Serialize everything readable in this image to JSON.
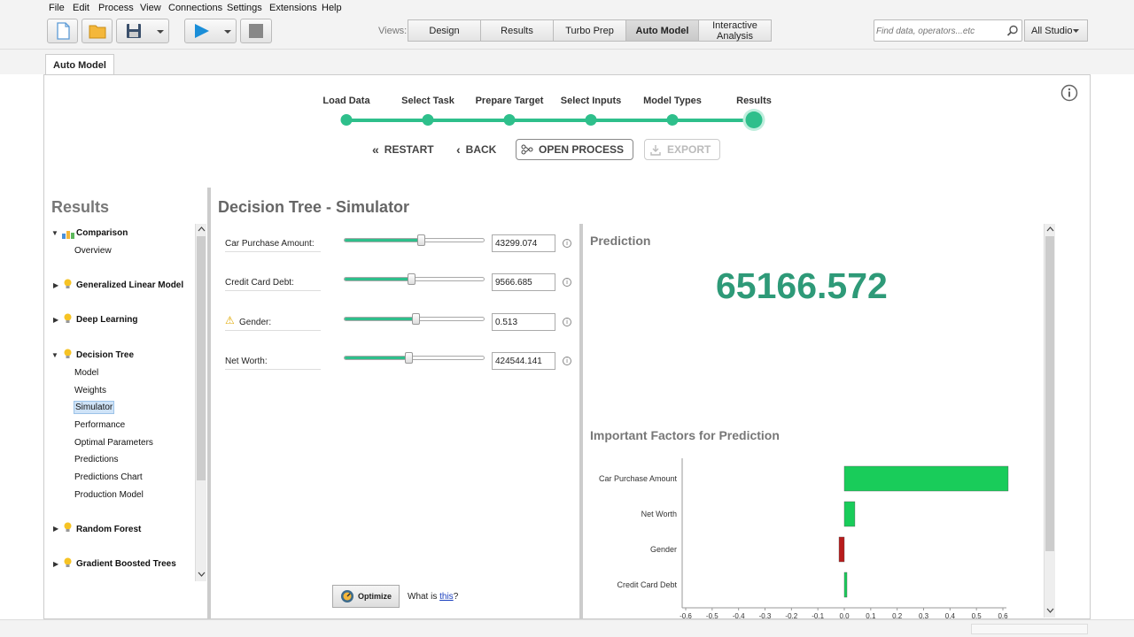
{
  "menu": [
    "File",
    "Edit",
    "Process",
    "View",
    "Connections",
    "Settings",
    "Extensions",
    "Help"
  ],
  "toolbar": {
    "views_label": "Views:",
    "views": [
      "Design",
      "Results",
      "Turbo Prep",
      "Auto Model",
      "Interactive Analysis"
    ],
    "active_view": "Auto Model",
    "search_placeholder": "Find data, operators...etc",
    "studio": "All Studio"
  },
  "tab": "Auto Model",
  "steps": [
    "Load Data",
    "Select Task",
    "Prepare Target",
    "Select Inputs",
    "Model Types",
    "Results"
  ],
  "nav": {
    "restart": "RESTART",
    "back": "BACK",
    "open_process": "OPEN PROCESS",
    "export": "EXPORT"
  },
  "sidebar": {
    "title": "Results",
    "groups": [
      {
        "label": "Comparison",
        "items": [
          "Overview"
        ]
      },
      {
        "label": "Generalized Linear Model",
        "items": []
      },
      {
        "label": "Deep Learning",
        "items": []
      },
      {
        "label": "Decision Tree",
        "items": [
          "Model",
          "Weights",
          "Simulator",
          "Performance",
          "Optimal Parameters",
          "Predictions",
          "Predictions Chart",
          "Production Model"
        ]
      },
      {
        "label": "Random Forest",
        "items": []
      },
      {
        "label": "Gradient Boosted Trees",
        "items": []
      }
    ],
    "selected": "Simulator"
  },
  "simulator": {
    "title": "Decision Tree - Simulator",
    "inputs": [
      {
        "label": "Car Purchase Amount:",
        "value": "43299.074",
        "position": 0.55,
        "warning": false
      },
      {
        "label": "Credit Card Debt:",
        "value": "9566.685",
        "position": 0.48,
        "warning": false
      },
      {
        "label": "Gender:",
        "value": "0.513",
        "position": 0.51,
        "warning": true
      },
      {
        "label": "Net Worth:",
        "value": "424544.141",
        "position": 0.46,
        "warning": false
      }
    ],
    "optimize": "Optimize",
    "what_is": "What is",
    "this_link": "this",
    "what_is_end": "?"
  },
  "prediction": {
    "label": "Prediction",
    "value": "65166.572"
  },
  "factors": {
    "label": "Important Factors for Prediction"
  },
  "chart_data": {
    "type": "bar",
    "orientation": "horizontal",
    "categories": [
      "Car Purchase Amount",
      "Net Worth",
      "Gender",
      "Credit Card Debt"
    ],
    "values": [
      0.62,
      0.04,
      -0.02,
      0.01
    ],
    "colors": [
      "#19cc5a",
      "#19cc5a",
      "#b81c1c",
      "#19cc5a"
    ],
    "xlim": [
      -0.6,
      0.6
    ],
    "xticks": [
      "-0.6",
      "-0.5",
      "-0.4",
      "-0.3",
      "-0.2",
      "-0.1",
      "0.0",
      "0.1",
      "0.2",
      "0.3",
      "0.4",
      "0.5",
      "0.6"
    ],
    "title": "",
    "xlabel": "",
    "ylabel": ""
  },
  "colors": {
    "accent": "#2ebf8b",
    "prediction": "#2e9a78"
  }
}
